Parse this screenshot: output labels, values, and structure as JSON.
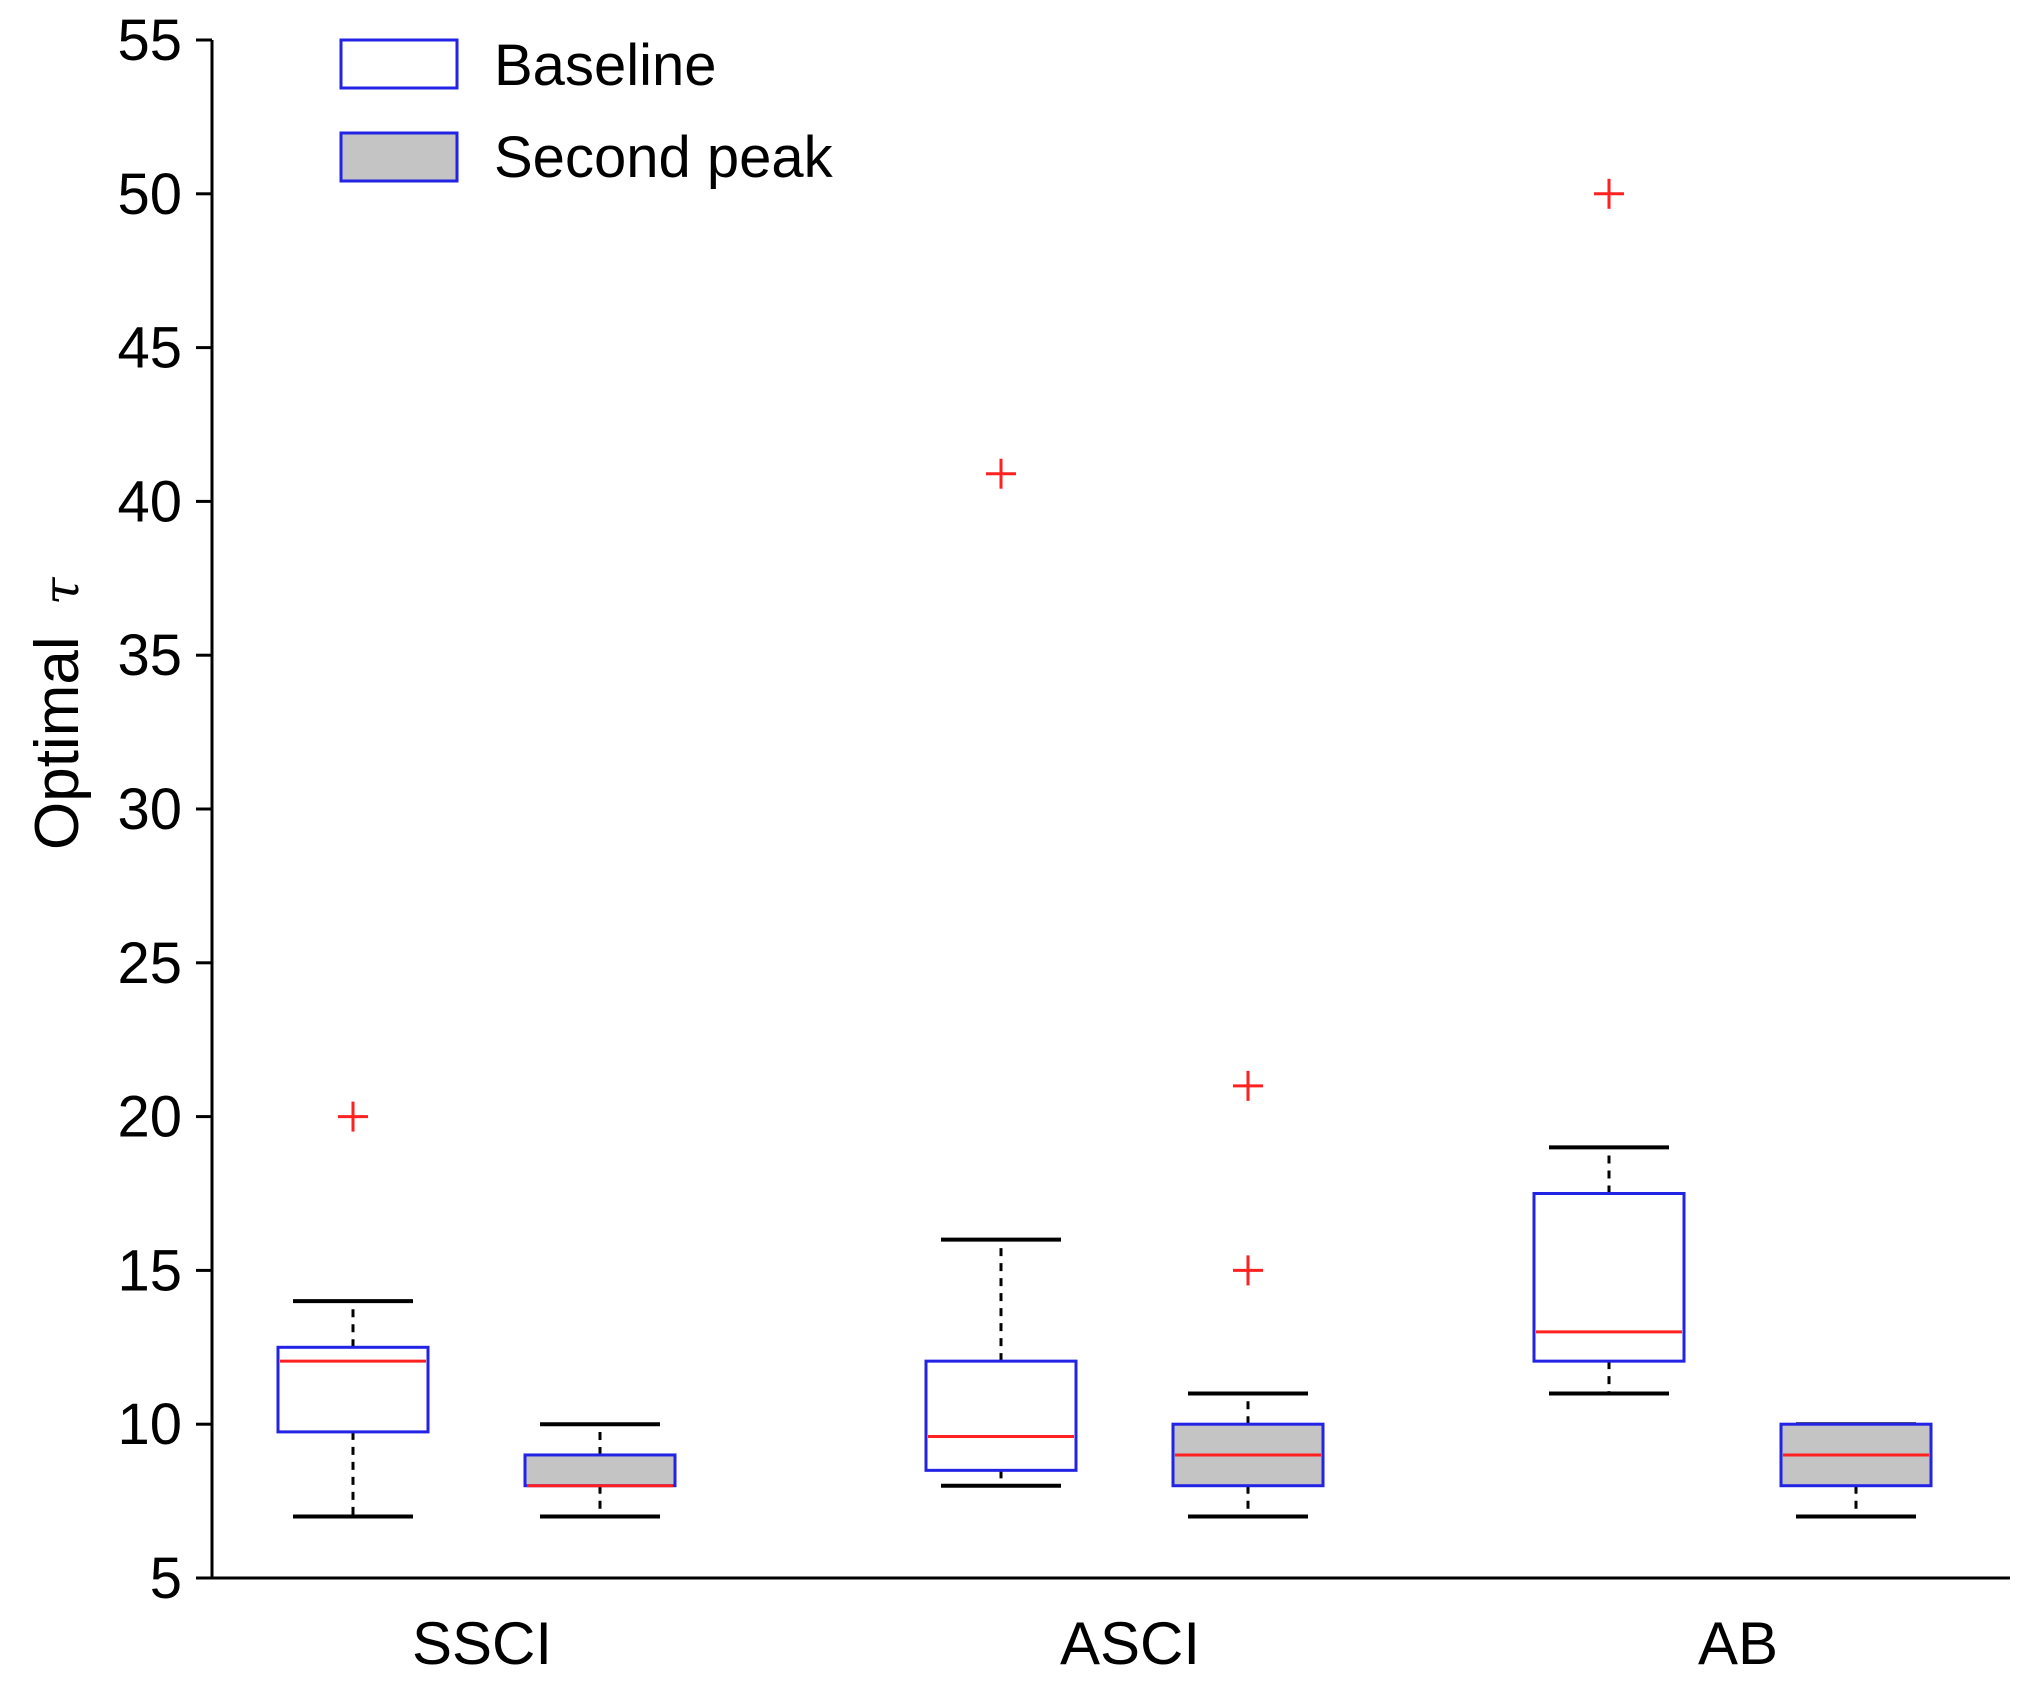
{
  "chart_data": {
    "type": "boxplot",
    "ylabel": "Optimal",
    "ylabel_symbol": "τ",
    "xlabel": "",
    "ylim": [
      5,
      55
    ],
    "yticks": [
      5,
      10,
      15,
      20,
      25,
      30,
      35,
      40,
      45,
      50,
      55
    ],
    "categories": [
      "SSCI",
      "ASCI",
      "AB"
    ],
    "legend": {
      "position": "top-left",
      "entries": [
        {
          "label": "Baseline",
          "fill": "#ffffff",
          "stroke": "#2323e6"
        },
        {
          "label": "Second peak",
          "fill": "#c4c4c4",
          "stroke": "#2323e6"
        }
      ]
    },
    "colors": {
      "box_edge": "#2323e6",
      "second_fill": "#c4c4c4",
      "median": "#ff2020",
      "outlier": "#ff2020",
      "whisker": "#000000"
    },
    "series": [
      {
        "name": "Baseline",
        "boxes": [
          {
            "category": "SSCI",
            "min": 7,
            "q1": 9.75,
            "median": 12.05,
            "q3": 12.5,
            "max": 14,
            "outliers": [
              20
            ]
          },
          {
            "category": "ASCI",
            "min": 8,
            "q1": 8.5,
            "median": 9.6,
            "q3": 12.05,
            "max": 16,
            "outliers": [
              40.9
            ]
          },
          {
            "category": "AB",
            "min": 11,
            "q1": 12.05,
            "median": 13,
            "q3": 17.5,
            "max": 19,
            "outliers": [
              50
            ]
          }
        ]
      },
      {
        "name": "Second peak",
        "boxes": [
          {
            "category": "SSCI",
            "min": 7,
            "q1": 8,
            "median": 8,
            "q3": 9,
            "max": 10,
            "outliers": []
          },
          {
            "category": "ASCI",
            "min": 7,
            "q1": 8,
            "median": 9,
            "q3": 10,
            "max": 11,
            "outliers": [
              15,
              21
            ]
          },
          {
            "category": "AB",
            "min": 7,
            "q1": 8,
            "median": 9,
            "q3": 10,
            "max": 10,
            "outliers": []
          }
        ]
      }
    ]
  }
}
